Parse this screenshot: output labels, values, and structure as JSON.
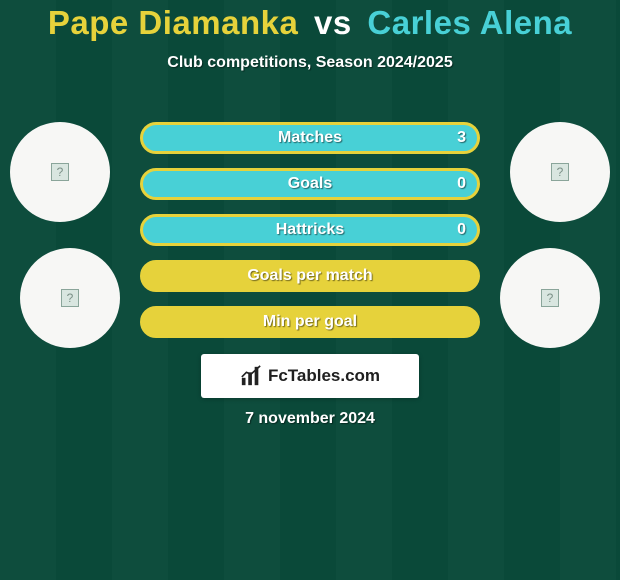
{
  "title": {
    "player1": "Pape Diamanka",
    "vs": "vs",
    "player2": "Carles Alena"
  },
  "subtitle": "Club competitions, Season 2024/2025",
  "colors": {
    "player1": "#e6d23b",
    "player2": "#48d0d6",
    "row_border": "#e6d23b",
    "row_fill_p2": "#48d0d6"
  },
  "stats": [
    {
      "label": "Matches",
      "p1": "",
      "p2": "3",
      "p1_pct": 0,
      "p2_pct": 100
    },
    {
      "label": "Goals",
      "p1": "",
      "p2": "0",
      "p1_pct": 0,
      "p2_pct": 100
    },
    {
      "label": "Hattricks",
      "p1": "",
      "p2": "0",
      "p1_pct": 0,
      "p2_pct": 100
    },
    {
      "label": "Goals per match",
      "p1": "",
      "p2": "",
      "p1_pct": 100,
      "p2_pct": 0
    },
    {
      "label": "Min per goal",
      "p1": "",
      "p2": "",
      "p1_pct": 100,
      "p2_pct": 0
    }
  ],
  "brand": "FcTables.com",
  "date": "7 november 2024"
}
